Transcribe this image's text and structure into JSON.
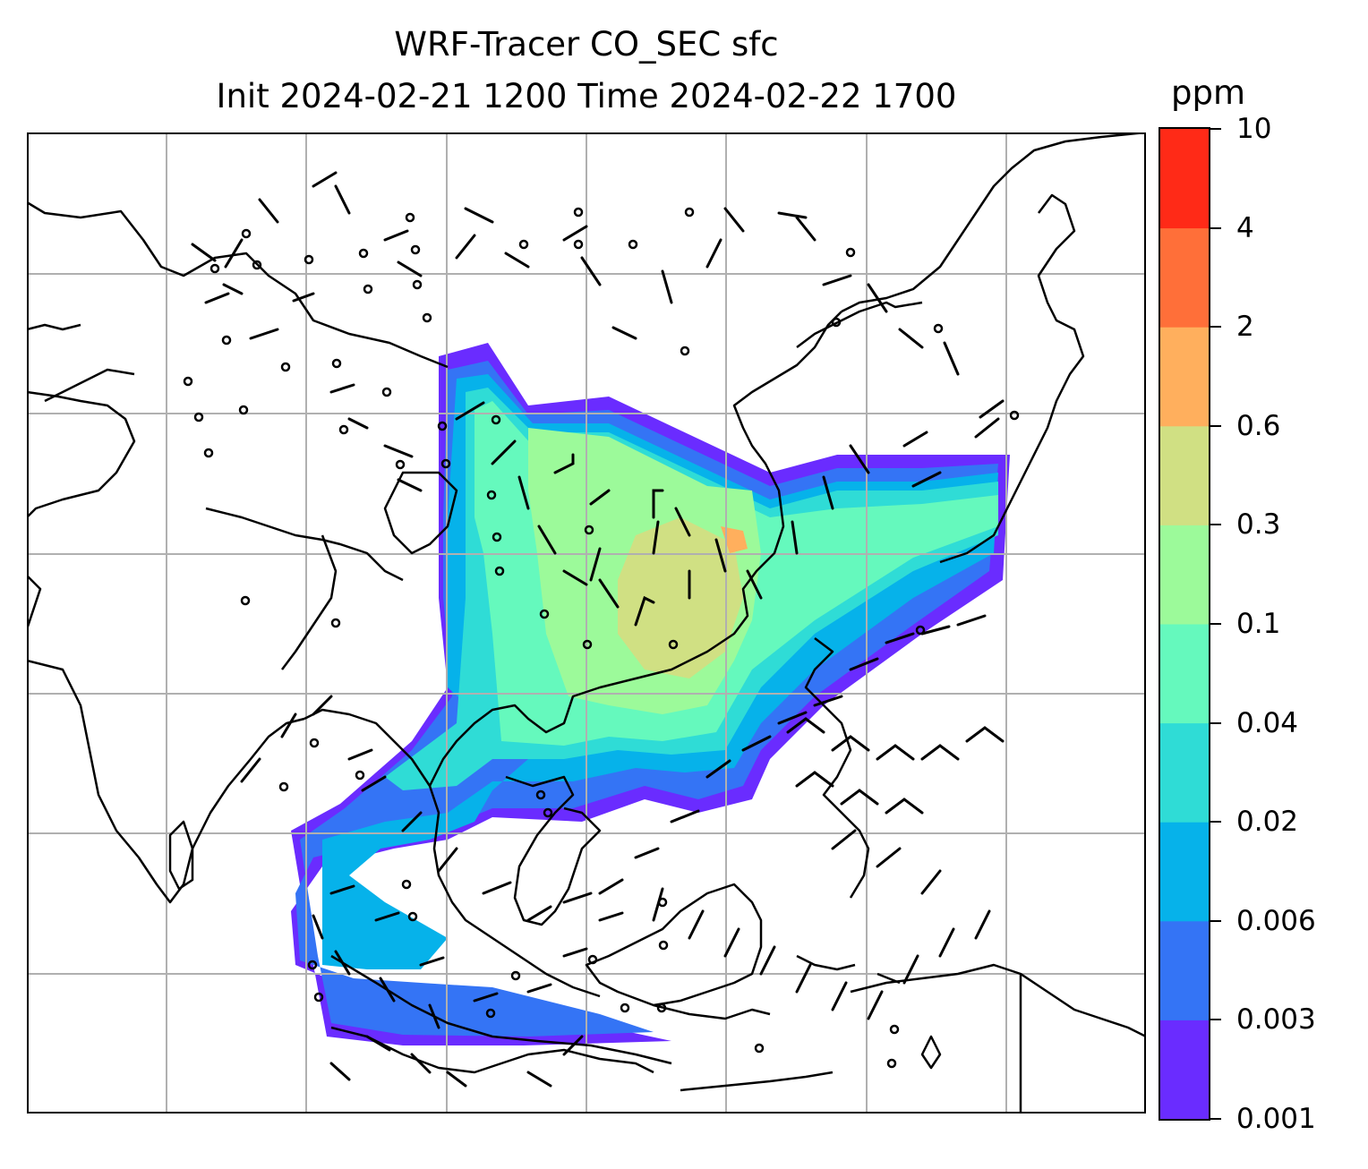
{
  "title": {
    "line1": "WRF-Tracer CO_SEC sfc",
    "line2": "Init 2024-02-21 1200 Time 2024-02-22 1700"
  },
  "colorbar": {
    "unit": "ppm",
    "levels": [
      "0.001",
      "0.003",
      "0.006",
      "0.02",
      "0.04",
      "0.1",
      "0.3",
      "0.6",
      "2",
      "4",
      "10"
    ],
    "colors": [
      "#6a2cff",
      "#3474f5",
      "#06b2ea",
      "#2fdcd6",
      "#65f9bd",
      "#9cfa9a",
      "#d0e083",
      "#ffaf5d",
      "#ff6f39",
      "#ff2a17"
    ]
  },
  "map": {
    "gridlines": true,
    "coastline_color": "#000000",
    "grid_color": "#b0b0b0"
  }
}
